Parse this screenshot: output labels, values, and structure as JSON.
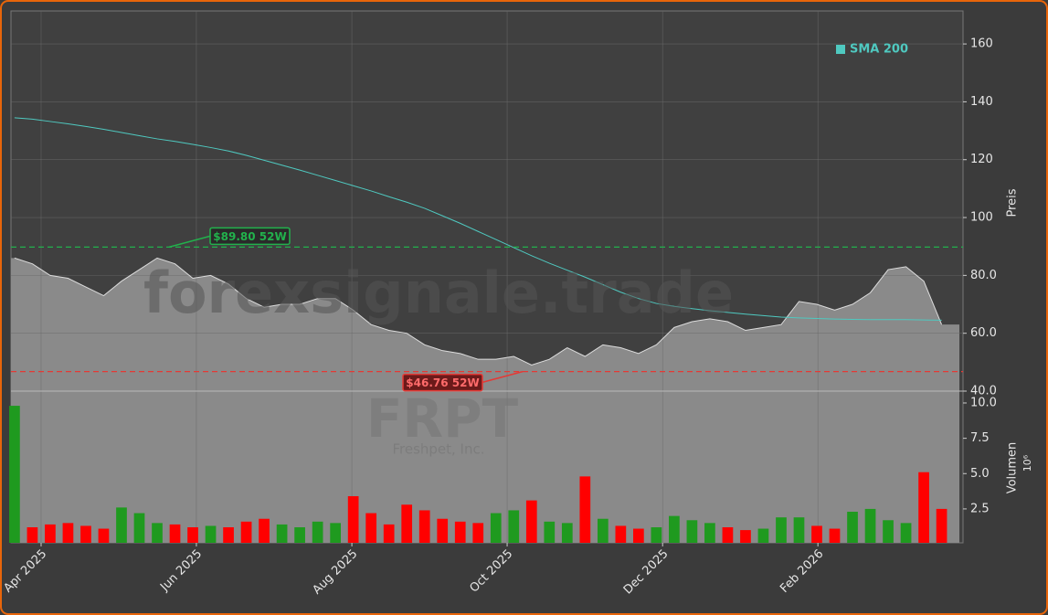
{
  "chart_data": {
    "type": "stock",
    "watermark": "forexsignale.trade",
    "ticker": "FRPT",
    "company": "Freshpet, Inc.",
    "categories": [
      null,
      null,
      null,
      null,
      null,
      null,
      null,
      null,
      null,
      null,
      null,
      null,
      null,
      null,
      null,
      null,
      null,
      null,
      null,
      null,
      null,
      null,
      null,
      null,
      null,
      null,
      null,
      null,
      null,
      null,
      null,
      null,
      null,
      null,
      null,
      null,
      null,
      null,
      null,
      null,
      null,
      null,
      null,
      null,
      null,
      null,
      null,
      null,
      null,
      null,
      null,
      null,
      null
    ],
    "xlim": [
      -0.2,
      53.2
    ],
    "xticks": [
      {
        "value": 1.49,
        "label": "Apr 2025"
      },
      {
        "value": 10.2,
        "label": "Jun 2025"
      },
      {
        "value": 18.92,
        "label": "Aug 2025"
      },
      {
        "value": 27.63,
        "label": "Oct 2025"
      },
      {
        "value": 36.35,
        "label": "Dec 2025"
      },
      {
        "value": 45.06,
        "label": "Feb 2026"
      }
    ],
    "price": {
      "ylabel": "Preis",
      "ylim": [
        40,
        171.4
      ],
      "yticks": [
        {
          "value": 40,
          "label": "40.0"
        },
        {
          "value": 60,
          "label": "60.0"
        },
        {
          "value": 80,
          "label": "80.0"
        },
        100,
        120,
        140,
        160
      ],
      "grid": true,
      "series": [
        {
          "name": "Close",
          "color": "#8a8a8a",
          "values": [
            86,
            84,
            80,
            79,
            76,
            73,
            78,
            82,
            86,
            84,
            79,
            80,
            77,
            72,
            69,
            70,
            70,
            72,
            72,
            68,
            63,
            61,
            60,
            56,
            54,
            53,
            51,
            51,
            52,
            49,
            51,
            55,
            52,
            56,
            55,
            53,
            56,
            62,
            64,
            65,
            64,
            61,
            62,
            63,
            71,
            70,
            68,
            70,
            74,
            82,
            83,
            78,
            63
          ]
        },
        {
          "name": "SMA 200",
          "color": "#4fc9c0",
          "values": [
            134.5,
            134,
            133.2,
            132.4,
            131.5,
            130.5,
            129.4,
            128.3,
            127.2,
            126.3,
            125.3,
            124.2,
            123,
            121.5,
            119.8,
            118.1,
            116.4,
            114.6,
            112.8,
            111,
            109.2,
            107.2,
            105.3,
            103.2,
            100.6,
            98,
            95.2,
            92.4,
            89.6,
            86.8,
            84.2,
            81.8,
            79.4,
            76.8,
            74.2,
            72,
            70.3,
            69.3,
            68.5,
            67.8,
            67.2,
            66.6,
            66.1,
            65.6,
            65.3,
            65.1,
            64.9,
            64.8,
            64.7,
            64.7,
            64.7,
            64.6,
            64.5
          ]
        }
      ],
      "legend": "upper right",
      "high_52w": {
        "value": 89.8,
        "label": "$89.80 52W",
        "color": "#22b14c"
      },
      "low_52w": {
        "value": 46.76,
        "label": "$46.76 52W",
        "color": "#e53935"
      }
    },
    "volume": {
      "ylabel": "Volumen",
      "unit": "10⁶",
      "ylim": [
        0.1,
        10.84
      ],
      "yticks": [
        2.5,
        {
          "value": 5,
          "label": "5.0"
        },
        7.5,
        {
          "value": 10,
          "label": "10.0"
        }
      ],
      "up_color": "#1f9a1f",
      "down_color": "#ff0000",
      "values": [
        9.8,
        1.2,
        1.4,
        1.5,
        1.3,
        1.1,
        2.6,
        2.2,
        1.5,
        1.4,
        1.2,
        1.3,
        1.2,
        1.6,
        1.8,
        1.4,
        1.2,
        1.6,
        1.5,
        3.4,
        2.2,
        1.4,
        2.8,
        2.4,
        1.8,
        1.6,
        1.5,
        2.2,
        2.4,
        3.1,
        1.6,
        1.5,
        4.8,
        1.8,
        1.3,
        1.1,
        1.2,
        2.0,
        1.7,
        1.5,
        1.2,
        1.0,
        1.1,
        1.9,
        1.9,
        1.3,
        1.1,
        2.3,
        2.5,
        1.7,
        1.5,
        5.1,
        2.5
      ]
    }
  }
}
